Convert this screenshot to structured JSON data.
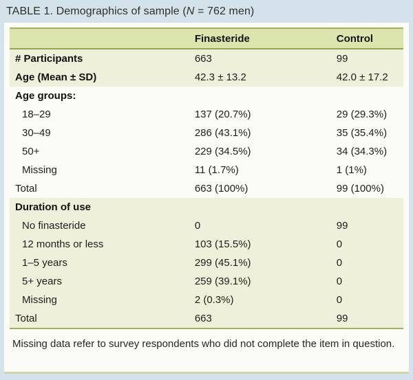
{
  "title": {
    "part1": "TABLE 1. Demographics of sample (",
    "n": "N",
    "part2": " = 762 men)"
  },
  "table": {
    "columns": [
      "",
      "Finasteride",
      "Control"
    ],
    "sections": [
      {
        "shaded": true,
        "rows": [
          {
            "label": "# Participants",
            "bold": true,
            "indent": false,
            "finasteride": "663",
            "control": "99"
          },
          {
            "label": "Age (Mean ± SD)",
            "bold": true,
            "indent": false,
            "finasteride": "42.3 ± 13.2",
            "control": "42.0 ± 17.2"
          }
        ]
      },
      {
        "shaded": false,
        "rows": [
          {
            "label": "Age groups:",
            "bold": true,
            "indent": false,
            "finasteride": "",
            "control": ""
          },
          {
            "label": "18–29",
            "bold": false,
            "indent": true,
            "finasteride": "137 (20.7%)",
            "control": "29 (29.3%)"
          },
          {
            "label": "30–49",
            "bold": false,
            "indent": true,
            "finasteride": "286 (43.1%)",
            "control": "35 (35.4%)"
          },
          {
            "label": "50+",
            "bold": false,
            "indent": true,
            "finasteride": "229 (34.5%)",
            "control": "34 (34.3%)"
          },
          {
            "label": "Missing",
            "bold": false,
            "indent": true,
            "finasteride": "11 (1.7%)",
            "control": "1 (1%)"
          },
          {
            "label": "Total",
            "bold": false,
            "indent": false,
            "finasteride": "663 (100%)",
            "control": "99 (100%)"
          }
        ]
      },
      {
        "shaded": true,
        "rows": [
          {
            "label": "Duration of use",
            "bold": true,
            "indent": false,
            "finasteride": "",
            "control": ""
          },
          {
            "label": "No finasteride",
            "bold": false,
            "indent": true,
            "finasteride": "0",
            "control": "99"
          },
          {
            "label": "12 months or less",
            "bold": false,
            "indent": true,
            "finasteride": "103 (15.5%)",
            "control": "0"
          },
          {
            "label": "1–5 years",
            "bold": false,
            "indent": true,
            "finasteride": "299 (45.1%)",
            "control": "0"
          },
          {
            "label": "5+ years",
            "bold": false,
            "indent": true,
            "finasteride": "259 (39.1%)",
            "control": "0"
          },
          {
            "label": "Missing",
            "bold": false,
            "indent": true,
            "finasteride": "2 (0.3%)",
            "control": "0"
          },
          {
            "label": "Total",
            "bold": false,
            "indent": false,
            "finasteride": "663",
            "control": "99"
          }
        ]
      }
    ]
  },
  "footnote": "Missing data refer to survey respondents who did not complete the item in question.",
  "colors": {
    "page_background": "#d4e2ec",
    "card_background": "#fcfcf6",
    "header_background": "#dce5ad",
    "shaded_row_background": "#eef0da",
    "border_olive": "#a2b159",
    "text": "#1d1d1b"
  }
}
